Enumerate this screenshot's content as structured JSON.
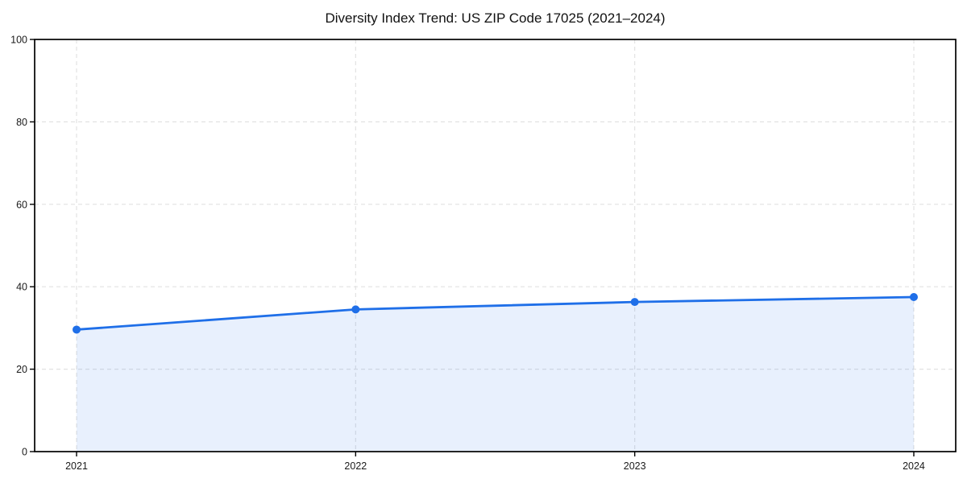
{
  "chart_data": {
    "type": "area",
    "title": "Diversity Index Trend: US ZIP Code 17025 (2021–2024)",
    "categories": [
      "2021",
      "2022",
      "2023",
      "2024"
    ],
    "series": [
      {
        "name": "Diversity Index",
        "values": [
          29.6,
          34.5,
          36.3,
          37.5
        ]
      }
    ],
    "xlabel": "",
    "ylabel": "",
    "ylim": [
      0,
      100
    ],
    "y_ticks": [
      0,
      20,
      40,
      60,
      80,
      100
    ],
    "grid": "dashed",
    "legend": "none",
    "colors": {
      "line": "#1f6fe8",
      "marker": "#1f6fe8",
      "fill": "#1f6fe8",
      "fill_opacity": 0.1,
      "grid": "#e2e2e2",
      "axis": "#000000",
      "tick_label": "#1a1a1a",
      "title": "#111111"
    }
  }
}
